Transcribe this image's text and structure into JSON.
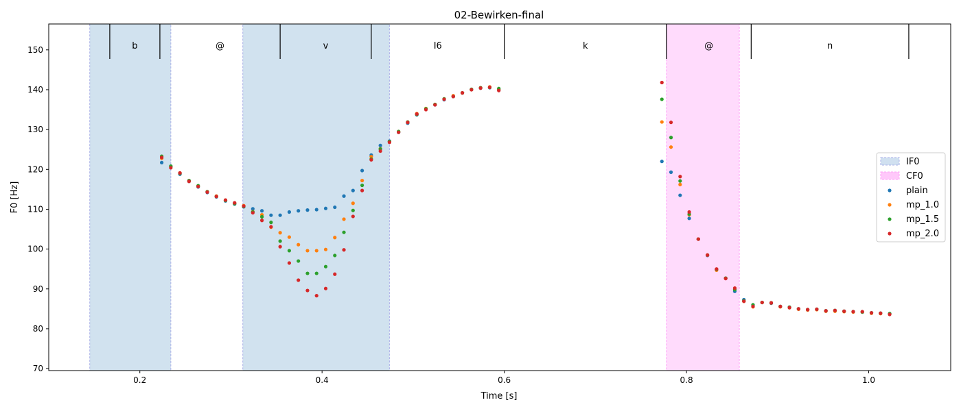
{
  "chart_data": {
    "type": "scatter",
    "title": "02-Bewirken-final",
    "xlabel": "Time [s]",
    "ylabel": "F0 [Hz]",
    "xlim": [
      0.1,
      1.09
    ],
    "ylim": [
      69.5,
      156.5
    ],
    "xticks": [
      0.2,
      0.4,
      0.6,
      0.8,
      1.0
    ],
    "xtick_labels": [
      "0.2",
      "0.4",
      "0.6",
      "0.8",
      "1.0"
    ],
    "yticks": [
      70,
      80,
      90,
      100,
      110,
      120,
      130,
      140,
      150
    ],
    "ytick_labels": [
      "70",
      "80",
      "90",
      "100",
      "110",
      "120",
      "130",
      "140",
      "150"
    ],
    "legend_position": "center-right",
    "regions": [
      {
        "name": "IF0",
        "color": "#b8d2e6",
        "edge": "#aab0e8",
        "start": 0.145,
        "end": 0.234
      },
      {
        "name": "IF0",
        "color": "#b8d2e6",
        "edge": "#aab0e8",
        "start": 0.313,
        "end": 0.474
      },
      {
        "name": "CF0",
        "color": "#ffc8fa",
        "edge": "#ffa0f6",
        "start": 0.778,
        "end": 0.858
      }
    ],
    "region_legend": [
      {
        "label": "IF0",
        "color": "#d0e0f0",
        "edge": "#aab0e8"
      },
      {
        "label": "CF0",
        "color": "#ffc8fa",
        "edge": "#ffa0f6"
      }
    ],
    "segments": [
      {
        "label": "b",
        "start": 0.167,
        "end": 0.222
      },
      {
        "label": "@",
        "start": 0.222,
        "end": 0.354
      },
      {
        "label": "v",
        "start": 0.354,
        "end": 0.454
      },
      {
        "label": "I6",
        "start": 0.454,
        "end": 0.6
      },
      {
        "label": "k",
        "start": 0.6,
        "end": 0.778
      },
      {
        "label": "@",
        "start": 0.778,
        "end": 0.871
      },
      {
        "label": "n",
        "start": 0.871,
        "end": 1.044
      }
    ],
    "segment_boundaries": [
      0.167,
      0.222,
      0.354,
      0.454,
      0.6,
      0.778,
      0.871,
      1.044
    ],
    "x": [
      0.224,
      0.234,
      0.244,
      0.254,
      0.264,
      0.274,
      0.284,
      0.294,
      0.304,
      0.314,
      0.324,
      0.334,
      0.344,
      0.354,
      0.364,
      0.374,
      0.384,
      0.394,
      0.404,
      0.414,
      0.424,
      0.434,
      0.444,
      0.454,
      0.464,
      0.474,
      0.484,
      0.494,
      0.504,
      0.514,
      0.524,
      0.534,
      0.544,
      0.554,
      0.564,
      0.574,
      0.584,
      0.594
    ],
    "x2": [
      0.773,
      0.783,
      0.793,
      0.803,
      0.813,
      0.823,
      0.833,
      0.843,
      0.853,
      0.863,
      0.873,
      0.883,
      0.893,
      0.903,
      0.913,
      0.923,
      0.933,
      0.943,
      0.953,
      0.963,
      0.973,
      0.983,
      0.993,
      1.003,
      1.013,
      1.023
    ],
    "series": [
      {
        "name": "plain",
        "color": "#1f77b4",
        "values": [
          121.7,
          120.8,
          118.8,
          117.0,
          115.6,
          114.2,
          113.1,
          112.1,
          111.3,
          110.6,
          110.1,
          109.6,
          108.5,
          108.5,
          109.3,
          109.6,
          109.8,
          109.9,
          110.2,
          110.5,
          113.3,
          114.7,
          119.7,
          123.6,
          126.0,
          127.1,
          129.3,
          131.6,
          133.7,
          135.2,
          136.2,
          137.5,
          138.3,
          139.2,
          140.0,
          140.4,
          140.5,
          140.0
        ],
        "values2": [
          122.0,
          119.3,
          113.5,
          107.7,
          102.5,
          98.4,
          94.9,
          92.7,
          89.4,
          87.3,
          86.0,
          86.6,
          86.4,
          85.6,
          85.4,
          85.0,
          84.8,
          84.9,
          84.5,
          84.6,
          84.4,
          84.3,
          84.2,
          84.0,
          83.9,
          83.8
        ]
      },
      {
        "name": "mp_1.0",
        "color": "#ff7f0e",
        "values": [
          122.8,
          120.7,
          119.1,
          117.1,
          115.8,
          114.4,
          113.3,
          112.3,
          111.5,
          110.9,
          109.4,
          108.6,
          105.5,
          104.1,
          103.0,
          101.1,
          99.6,
          99.6,
          99.9,
          102.9,
          107.5,
          111.5,
          117.2,
          123.2,
          125.2,
          127.0,
          129.5,
          131.8,
          134.0,
          135.3,
          136.3,
          137.7,
          138.5,
          139.2,
          140.0,
          140.5,
          140.7,
          140.1
        ],
        "values2": [
          131.9,
          125.6,
          116.2,
          108.6,
          102.5,
          98.5,
          94.7,
          92.7,
          89.9,
          86.9,
          85.5,
          86.6,
          86.5,
          85.5,
          85.3,
          84.9,
          84.7,
          84.8,
          84.4,
          84.4,
          84.3,
          84.2,
          84.2,
          83.9,
          83.8,
          83.7
        ]
      },
      {
        "name": "mp_1.5",
        "color": "#2ca02c",
        "values": [
          123.3,
          120.8,
          119.0,
          117.2,
          115.9,
          114.4,
          113.2,
          112.2,
          111.4,
          110.7,
          109.3,
          108.1,
          106.7,
          102.0,
          99.6,
          97.0,
          93.9,
          93.9,
          95.6,
          98.4,
          104.2,
          109.7,
          116.0,
          122.6,
          125.1,
          127.0,
          129.5,
          131.9,
          133.8,
          135.2,
          136.3,
          137.7,
          138.3,
          139.2,
          140.1,
          140.5,
          140.6,
          140.3
        ],
        "values2": [
          137.6,
          128.0,
          117.1,
          108.8,
          102.5,
          98.5,
          94.9,
          92.7,
          89.8,
          87.0,
          86.0,
          86.6,
          86.5,
          85.6,
          85.4,
          85.0,
          84.8,
          84.9,
          84.5,
          84.6,
          84.4,
          84.3,
          84.2,
          84.0,
          83.9,
          83.8
        ]
      },
      {
        "name": "mp_2.0",
        "color": "#d62728",
        "values": [
          123.0,
          120.4,
          119.1,
          117.0,
          115.7,
          114.3,
          113.2,
          112.3,
          111.6,
          110.8,
          109.1,
          107.2,
          105.6,
          100.6,
          96.5,
          92.2,
          89.6,
          88.3,
          90.1,
          93.7,
          99.8,
          108.2,
          114.7,
          122.4,
          124.6,
          126.8,
          129.3,
          131.8,
          133.9,
          135.0,
          136.2,
          137.6,
          138.3,
          139.2,
          140.0,
          140.4,
          140.6,
          139.8
        ],
        "values2": [
          141.8,
          131.8,
          118.2,
          109.3,
          102.5,
          98.5,
          95.0,
          92.6,
          90.2,
          86.9,
          85.6,
          86.6,
          86.5,
          85.6,
          85.3,
          85.0,
          84.8,
          84.9,
          84.5,
          84.6,
          84.4,
          84.3,
          84.3,
          84.0,
          83.9,
          83.6
        ]
      }
    ]
  }
}
